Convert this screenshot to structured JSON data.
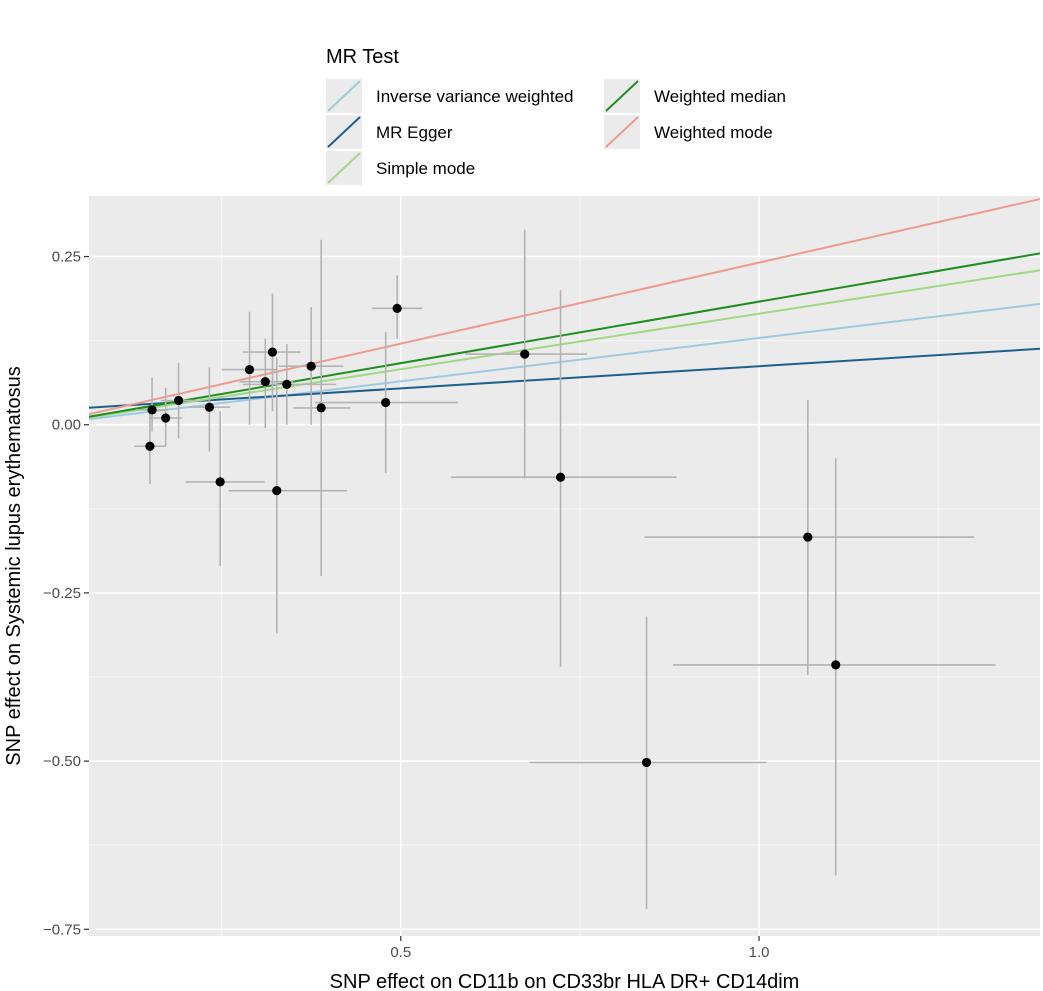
{
  "chart_data": {
    "type": "scatter",
    "title": "",
    "xlabel": "SNP effect on CD11b on CD33br HLA DR+ CD14dim",
    "ylabel": "SNP effect on Systemic lupus erythematosus",
    "xlim": [
      0.065,
      1.392
    ],
    "ylim": [
      -0.76,
      0.34
    ],
    "x_ticks": [
      0.5,
      1.0
    ],
    "x_tick_labels": [
      "0.5",
      "1.0"
    ],
    "y_ticks": [
      0.25,
      0.0,
      -0.25,
      -0.5,
      -0.75
    ],
    "y_tick_labels": [
      "0.25",
      "0.00",
      "−0.25",
      "−0.50",
      "−0.75"
    ],
    "legend": {
      "title": "MR Test",
      "position": "top",
      "entries": [
        {
          "name": "Inverse variance weighted",
          "color": "#9ecae1"
        },
        {
          "name": "MR Egger",
          "color": "#1f5f8b"
        },
        {
          "name": "Simple mode",
          "color": "#a1d884"
        },
        {
          "name": "Weighted median",
          "color": "#1e8f1e"
        },
        {
          "name": "Weighted mode",
          "color": "#ef9a8f"
        }
      ]
    },
    "lines": [
      {
        "name": "Inverse variance weighted",
        "color": "#9ecae1",
        "intercept": 0.0,
        "slope": 0.129
      },
      {
        "name": "MR Egger",
        "color": "#1f5f8b",
        "intercept": 0.021,
        "slope": 0.066
      },
      {
        "name": "Simple mode",
        "color": "#a1d884",
        "intercept": 0.0,
        "slope": 0.165
      },
      {
        "name": "Weighted median",
        "color": "#1e8f1e",
        "intercept": 0.0,
        "slope": 0.183
      },
      {
        "name": "Weighted mode",
        "color": "#ef9a8f",
        "intercept": 0.0,
        "slope": 0.241
      }
    ],
    "points": [
      {
        "x": 0.153,
        "y": 0.022,
        "xmin": 0.13,
        "xmax": 0.176,
        "ymin": -0.01,
        "ymax": 0.07
      },
      {
        "x": 0.15,
        "y": -0.032,
        "xmin": 0.128,
        "xmax": 0.172,
        "ymin": -0.088,
        "ymax": 0.02
      },
      {
        "x": 0.172,
        "y": 0.01,
        "xmin": 0.15,
        "xmax": 0.195,
        "ymin": -0.032,
        "ymax": 0.055
      },
      {
        "x": 0.19,
        "y": 0.036,
        "xmin": 0.165,
        "xmax": 0.215,
        "ymin": -0.02,
        "ymax": 0.092
      },
      {
        "x": 0.233,
        "y": 0.026,
        "xmin": 0.205,
        "xmax": 0.262,
        "ymin": -0.04,
        "ymax": 0.085
      },
      {
        "x": 0.248,
        "y": -0.085,
        "xmin": 0.2,
        "xmax": 0.31,
        "ymin": -0.21,
        "ymax": 0.02
      },
      {
        "x": 0.289,
        "y": 0.082,
        "xmin": 0.25,
        "xmax": 0.328,
        "ymin": 0.0,
        "ymax": 0.168
      },
      {
        "x": 0.311,
        "y": 0.064,
        "xmin": 0.275,
        "xmax": 0.35,
        "ymin": -0.005,
        "ymax": 0.128
      },
      {
        "x": 0.321,
        "y": 0.108,
        "xmin": 0.28,
        "xmax": 0.36,
        "ymin": 0.02,
        "ymax": 0.195
      },
      {
        "x": 0.327,
        "y": -0.098,
        "xmin": 0.26,
        "xmax": 0.425,
        "ymin": -0.31,
        "ymax": 0.1
      },
      {
        "x": 0.341,
        "y": 0.06,
        "xmin": 0.28,
        "xmax": 0.41,
        "ymin": 0.0,
        "ymax": 0.12
      },
      {
        "x": 0.375,
        "y": 0.087,
        "xmin": 0.33,
        "xmax": 0.42,
        "ymin": 0.0,
        "ymax": 0.175
      },
      {
        "x": 0.389,
        "y": 0.025,
        "xmin": 0.35,
        "xmax": 0.43,
        "ymin": -0.225,
        "ymax": 0.275
      },
      {
        "x": 0.479,
        "y": 0.033,
        "xmin": 0.38,
        "xmax": 0.58,
        "ymin": -0.072,
        "ymax": 0.138
      },
      {
        "x": 0.495,
        "y": 0.173,
        "xmin": 0.46,
        "xmax": 0.53,
        "ymin": 0.128,
        "ymax": 0.222
      },
      {
        "x": 0.673,
        "y": 0.105,
        "xmin": 0.59,
        "xmax": 0.76,
        "ymin": -0.08,
        "ymax": 0.29
      },
      {
        "x": 0.723,
        "y": -0.078,
        "xmin": 0.57,
        "xmax": 0.885,
        "ymin": -0.36,
        "ymax": 0.2
      },
      {
        "x": 0.843,
        "y": -0.502,
        "xmin": 0.68,
        "xmax": 1.01,
        "ymin": -0.72,
        "ymax": -0.285
      },
      {
        "x": 1.068,
        "y": -0.167,
        "xmin": 0.84,
        "xmax": 1.3,
        "ymin": -0.372,
        "ymax": 0.037
      },
      {
        "x": 1.107,
        "y": -0.357,
        "xmin": 0.88,
        "xmax": 1.33,
        "ymin": -0.67,
        "ymax": -0.05
      }
    ]
  }
}
